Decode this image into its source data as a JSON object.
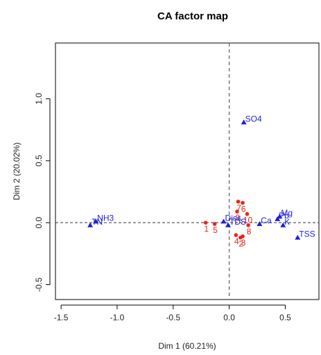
{
  "chart_data": {
    "type": "scatter",
    "title": "CA factor map",
    "xlabel": "Dim 1 (60.21%)",
    "ylabel": "Dim 2 (20.02%)",
    "xlim": [
      -1.55,
      0.8
    ],
    "ylim": [
      -0.62,
      1.45
    ],
    "xticks": [
      "-1.5",
      "-1.0",
      "-0.5",
      "0.0",
      "0.5"
    ],
    "xtick_values": [
      -1.5,
      -1.0,
      -0.5,
      0.0,
      0.5
    ],
    "yticks": [
      "-0.5",
      "0.0",
      "0.5",
      "1.0"
    ],
    "ytick_values": [
      -0.5,
      0.0,
      0.5,
      1.0
    ],
    "grid": false,
    "reference_lines": "dashed lines at x = 0 and y = 0",
    "row_color": "#e8251c",
    "col_color": "#1f1fd6",
    "rows": [
      {
        "label": "1",
        "x": -0.21,
        "y": 0.0
      },
      {
        "label": "2",
        "x": 0.1,
        "y": -0.12
      },
      {
        "label": "3",
        "x": 0.12,
        "y": -0.11
      },
      {
        "label": "4",
        "x": 0.06,
        "y": -0.1
      },
      {
        "label": "5",
        "x": -0.13,
        "y": -0.01
      },
      {
        "label": "6",
        "x": 0.12,
        "y": 0.16
      },
      {
        "label": "7",
        "x": 0.08,
        "y": 0.17
      },
      {
        "label": "8",
        "x": 0.17,
        "y": -0.02
      },
      {
        "label": "9",
        "x": 0.07,
        "y": 0.09
      },
      {
        "label": "10",
        "x": 0.16,
        "y": 0.07
      }
    ],
    "columns": [
      {
        "label": "SO4",
        "x": 0.13,
        "y": 0.81
      },
      {
        "label": "NH3",
        "x": -1.19,
        "y": 0.01
      },
      {
        "label": "TN",
        "x": -1.24,
        "y": -0.02
      },
      {
        "label": "Diss",
        "x": -0.05,
        "y": 0.01
      },
      {
        "label": "TDS",
        "x": -0.01,
        "y": -0.02
      },
      {
        "label": "Ca",
        "x": 0.27,
        "y": -0.01
      },
      {
        "label": "Pb",
        "x": 0.43,
        "y": 0.03
      },
      {
        "label": "Mg",
        "x": 0.45,
        "y": 0.05
      },
      {
        "label": "K",
        "x": 0.48,
        "y": -0.02
      },
      {
        "label": "TSS",
        "x": 0.61,
        "y": -0.12
      }
    ]
  }
}
